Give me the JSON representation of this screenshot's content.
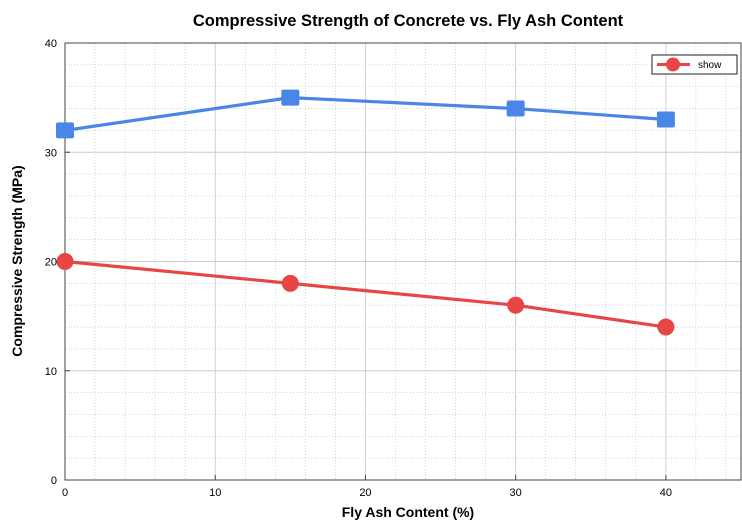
{
  "chart_data": {
    "type": "line",
    "title": "Compressive Strength of Concrete vs. Fly Ash Content",
    "xlabel": "Fly Ash Content (%)",
    "ylabel": "Compressive Strength (MPa)",
    "xlim": [
      0,
      45
    ],
    "ylim": [
      0,
      40
    ],
    "x_ticks": [
      "0",
      "10",
      "20",
      "30",
      "40"
    ],
    "y_ticks": [
      "0",
      "10",
      "20",
      "30",
      "40"
    ],
    "grid": true,
    "minor_grid": true,
    "legend_position": "top-right",
    "series": [
      {
        "key": "blue",
        "color": "#4a86e8",
        "marker": "square",
        "x": [
          0,
          15,
          30,
          40
        ],
        "y": [
          32,
          35,
          34,
          33
        ]
      },
      {
        "key": "red",
        "name": "show",
        "color": "#e84545",
        "marker": "circle",
        "x": [
          0,
          15,
          30,
          40
        ],
        "y": [
          20,
          18,
          16,
          14
        ]
      }
    ]
  }
}
